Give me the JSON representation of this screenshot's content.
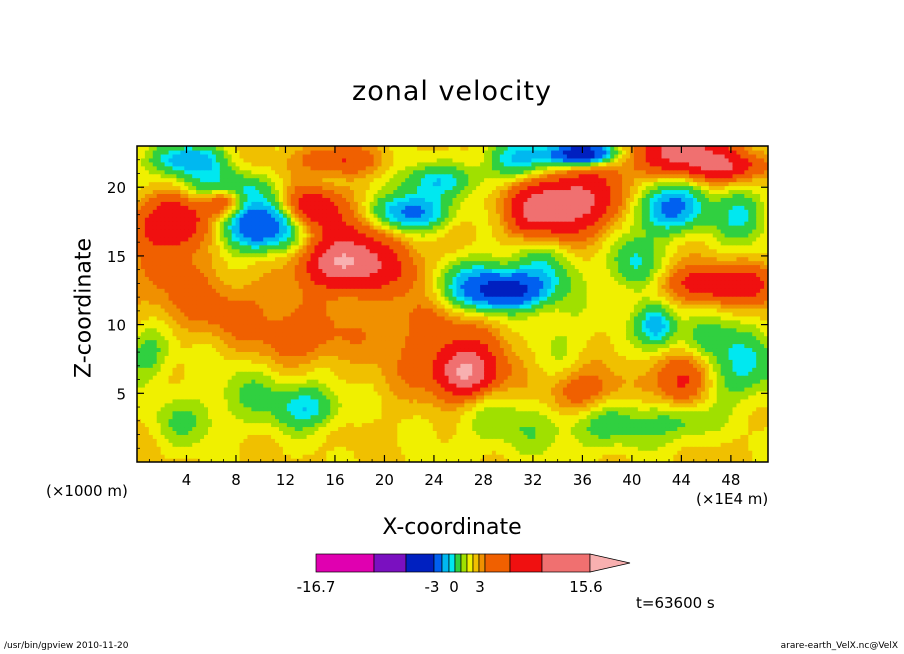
{
  "chart_data": {
    "type": "heatmap",
    "title": "zonal velocity",
    "xlabel": "X-coordinate",
    "ylabel": "Z-coordinate",
    "x_unit": "(×1E4 m)",
    "y_unit": "(×1000 m)",
    "xlim": [
      0,
      51
    ],
    "ylim": [
      0,
      23
    ],
    "x_ticks": [
      4,
      8,
      12,
      16,
      20,
      24,
      28,
      32,
      36,
      40,
      44,
      48
    ],
    "y_ticks": [
      5,
      10,
      15,
      20
    ],
    "colorbar": {
      "min": -16.7,
      "max": 15.6,
      "tick_labels": [
        "-16.7",
        "-3",
        "0",
        "3",
        "15.6"
      ],
      "tick_values": [
        -16.7,
        -3,
        0,
        3,
        15.6
      ],
      "colors": [
        "#e000b0",
        "#7a10c0",
        "#0020c0",
        "#0060f0",
        "#00b8f0",
        "#00e8f0",
        "#30d040",
        "#a0e000",
        "#f0f000",
        "#f0c000",
        "#f09000",
        "#f06000",
        "#f01010",
        "#f07070",
        "#f8b0b0"
      ]
    },
    "blobs": [
      {
        "x": 10,
        "z": 17.2,
        "v": -9,
        "rx": 3.4,
        "rz": 1.8
      },
      {
        "x": 4,
        "z": 22,
        "v": -6,
        "rx": 3,
        "rz": 1.2
      },
      {
        "x": 7,
        "z": 20,
        "v": -4,
        "rx": 4,
        "rz": 1.2
      },
      {
        "x": 3,
        "z": 17.5,
        "v": 7,
        "rx": 3,
        "rz": 2
      },
      {
        "x": 7,
        "z": 19,
        "v": 5,
        "rx": 1.5,
        "rz": 1
      },
      {
        "x": 14,
        "z": 18.5,
        "v": 6,
        "rx": 2.2,
        "rz": 1.5
      },
      {
        "x": 16.5,
        "z": 14.5,
        "v": 8,
        "rx": 3,
        "rz": 1.8
      },
      {
        "x": 18,
        "z": 16.5,
        "v": 3,
        "rx": 4.5,
        "rz": 3
      },
      {
        "x": 22,
        "z": 18.2,
        "v": -8,
        "rx": 3,
        "rz": 1.4
      },
      {
        "x": 24,
        "z": 20.5,
        "v": -4,
        "rx": 3.5,
        "rz": 1.2
      },
      {
        "x": 16,
        "z": 22,
        "v": 4,
        "rx": 3,
        "rz": 1
      },
      {
        "x": 30,
        "z": 12.5,
        "v": -9,
        "rx": 3,
        "rz": 1.3
      },
      {
        "x": 27,
        "z": 13,
        "v": -5,
        "rx": 3.5,
        "rz": 2
      },
      {
        "x": 33,
        "z": 14,
        "v": -3,
        "rx": 2.5,
        "rz": 2
      },
      {
        "x": 35,
        "z": 19,
        "v": 9,
        "rx": 4,
        "rz": 2.2
      },
      {
        "x": 32,
        "z": 18,
        "v": 4,
        "rx": 2,
        "rz": 1.5
      },
      {
        "x": 36,
        "z": 22.5,
        "v": -13,
        "rx": 2.5,
        "rz": 0.8
      },
      {
        "x": 31,
        "z": 22,
        "v": -5,
        "rx": 3,
        "rz": 1.5
      },
      {
        "x": 44,
        "z": 22.5,
        "v": 8,
        "rx": 4,
        "rz": 1.5
      },
      {
        "x": 48,
        "z": 21.5,
        "v": 5,
        "rx": 3,
        "rz": 1
      },
      {
        "x": 43,
        "z": 18.5,
        "v": -7,
        "rx": 3,
        "rz": 1.8
      },
      {
        "x": 49,
        "z": 18,
        "v": -4,
        "rx": 2,
        "rz": 2
      },
      {
        "x": 40,
        "z": 14.5,
        "v": -4,
        "rx": 2,
        "rz": 2
      },
      {
        "x": 42,
        "z": 10,
        "v": -6,
        "rx": 1.6,
        "rz": 1.6
      },
      {
        "x": 46,
        "z": 13,
        "v": 6,
        "rx": 3,
        "rz": 1.3
      },
      {
        "x": 50,
        "z": 13,
        "v": 4,
        "rx": 2,
        "rz": 1.5
      },
      {
        "x": 49,
        "z": 7,
        "v": -4,
        "rx": 3,
        "rz": 2.5
      },
      {
        "x": 46,
        "z": 9,
        "v": -3,
        "rx": 2,
        "rz": 1.5
      },
      {
        "x": 26.5,
        "z": 6.5,
        "v": 8,
        "rx": 2.2,
        "rz": 1.6
      },
      {
        "x": 26,
        "z": 7.5,
        "v": 3,
        "rx": 5,
        "rz": 3
      },
      {
        "x": 13,
        "z": 9,
        "v": 3,
        "rx": 3.5,
        "rz": 2
      },
      {
        "x": 8,
        "z": 11,
        "v": 2,
        "rx": 4,
        "rz": 2
      },
      {
        "x": 14,
        "z": 4,
        "v": -4,
        "rx": 2.5,
        "rz": 1.5
      },
      {
        "x": 10,
        "z": 5,
        "v": -2,
        "rx": 4,
        "rz": 2.5
      },
      {
        "x": 1,
        "z": 8,
        "v": -3,
        "rx": 2,
        "rz": 2
      },
      {
        "x": 4,
        "z": 3,
        "v": -2,
        "rx": 3,
        "rz": 2
      },
      {
        "x": 30,
        "z": 3,
        "v": -2,
        "rx": 5,
        "rz": 2.5
      },
      {
        "x": 38,
        "z": 3,
        "v": -3,
        "rx": 4,
        "rz": 2
      },
      {
        "x": 36,
        "z": 5,
        "v": 4,
        "rx": 3,
        "rz": 1.8
      },
      {
        "x": 44,
        "z": 6,
        "v": 5,
        "rx": 2,
        "rz": 2
      },
      {
        "x": 44,
        "z": 3,
        "v": -3,
        "rx": 2.5,
        "rz": 1.5
      },
      {
        "x": 22,
        "z": 11,
        "v": 1.5,
        "rx": 6,
        "rz": 3
      },
      {
        "x": 34,
        "z": 9,
        "v": -1.5,
        "rx": 3,
        "rz": 3
      },
      {
        "x": 3,
        "z": 13,
        "v": 2,
        "rx": 4,
        "rz": 3
      },
      {
        "x": 21,
        "z": 14,
        "v": 2,
        "rx": 4,
        "rz": 1.5
      }
    ]
  },
  "time_label": "t=63600 s",
  "footer_left": "/usr/bin/gpview  2010-11-20",
  "footer_right": "arare-earth_VelX.nc@VelX"
}
